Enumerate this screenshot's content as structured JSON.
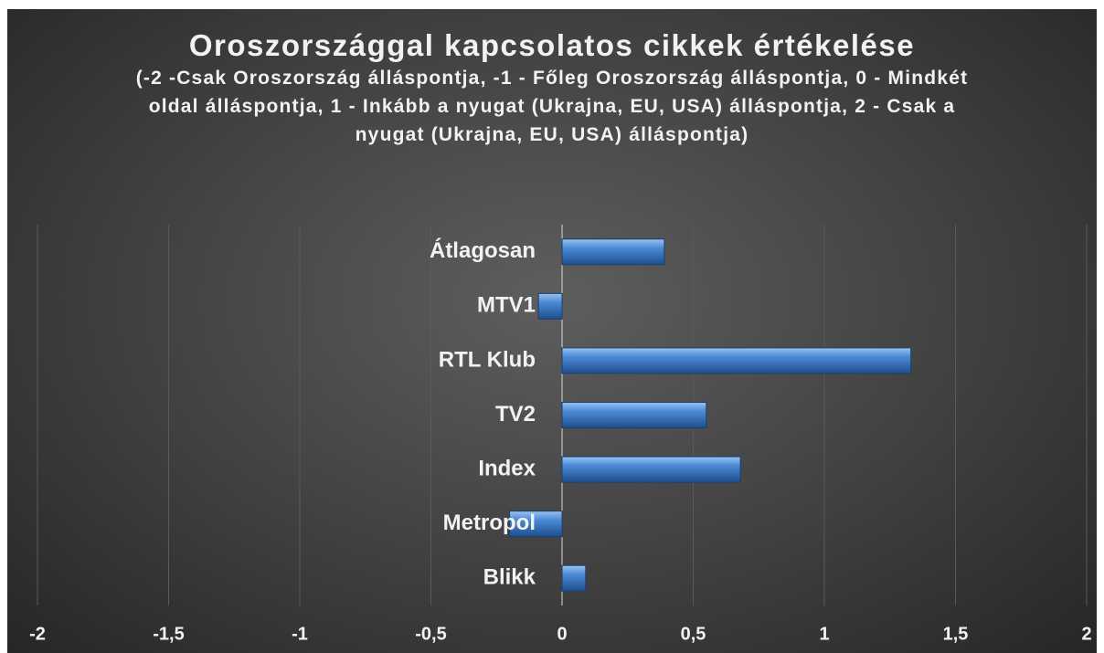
{
  "chart_data": {
    "type": "barh",
    "title": "Oroszországgal kapcsolatos cikkek értékelése",
    "subtitle": "(-2 -Csak Oroszország álláspontja, -1 - Főleg Oroszország álláspontja, 0  - Mindkét oldal álláspontja, 1 - Inkább a nyugat (Ukrajna, EU, USA) álláspontja, 2 - Csak a nyugat (Ukrajna, EU, USA) álláspontja)",
    "categories": [
      "Átlagosan",
      "MTV1",
      "RTL Klub",
      "TV2",
      "Index",
      "Metropol",
      "Blikk"
    ],
    "values": [
      0.39,
      -0.09,
      1.33,
      0.55,
      0.68,
      -0.2,
      0.09
    ],
    "color": "#4a8ad6",
    "xlim": [
      -2,
      2
    ],
    "xticks": [
      -2,
      {
        "value": -1.5,
        "label": "-1,5"
      },
      -1,
      {
        "value": -0.5,
        "label": "-0,5"
      },
      0,
      {
        "value": 0.5,
        "label": "0,5"
      },
      1,
      {
        "value": 1.5,
        "label": "1,5"
      },
      2
    ],
    "grid": true
  }
}
